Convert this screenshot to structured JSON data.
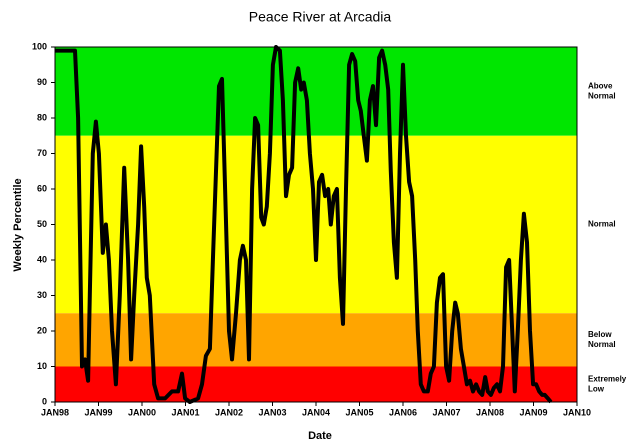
{
  "chart_data": {
    "type": "line",
    "title": "Peace River at Arcadia",
    "xlabel": "Date",
    "ylabel": "Weekly Percentile",
    "xlim": [
      1998,
      2010
    ],
    "xticks": [
      {
        "value": 1998,
        "label": "JAN98"
      },
      {
        "value": 1999,
        "label": "JAN99"
      },
      {
        "value": 2000,
        "label": "JAN00"
      },
      {
        "value": 2001,
        "label": "JAN01"
      },
      {
        "value": 2002,
        "label": "JAN02"
      },
      {
        "value": 2003,
        "label": "JAN03"
      },
      {
        "value": 2004,
        "label": "JAN04"
      },
      {
        "value": 2005,
        "label": "JAN05"
      },
      {
        "value": 2006,
        "label": "JAN06"
      },
      {
        "value": 2007,
        "label": "JAN07"
      },
      {
        "value": 2008,
        "label": "JAN08"
      },
      {
        "value": 2009,
        "label": "JAN09"
      },
      {
        "value": 2010,
        "label": "JAN10"
      }
    ],
    "ylim": [
      0,
      100
    ],
    "yticks": [
      0,
      10,
      20,
      30,
      40,
      50,
      60,
      70,
      80,
      90,
      100
    ],
    "bands": [
      {
        "from": 75,
        "to": 100,
        "color": "#00e600",
        "label": [
          "Above",
          "Normal"
        ]
      },
      {
        "from": 25,
        "to": 75,
        "color": "#ffff00",
        "label": [
          "Normal"
        ]
      },
      {
        "from": 10,
        "to": 25,
        "color": "#ffa500",
        "label": [
          "Below",
          "Normal"
        ]
      },
      {
        "from": 0,
        "to": 10,
        "color": "#ff0000",
        "label": [
          "Extremely",
          "Low"
        ]
      }
    ],
    "color": "#000000",
    "x": [
      1998.0,
      1998.46,
      1998.53,
      1998.62,
      1998.69,
      1998.76,
      1998.8,
      1998.87,
      1998.94,
      1999.01,
      1999.1,
      1999.17,
      1999.24,
      1999.31,
      1999.4,
      1999.49,
      1999.59,
      1999.68,
      1999.75,
      1999.82,
      1999.91,
      1999.98,
      2000.05,
      2000.11,
      2000.18,
      2000.28,
      2000.37,
      2000.53,
      2000.69,
      2000.83,
      2000.92,
      2000.99,
      2001.1,
      2001.29,
      2001.38,
      2001.47,
      2001.56,
      2001.63,
      2001.7,
      2001.77,
      2001.84,
      2001.91,
      2002.0,
      2002.07,
      2002.16,
      2002.25,
      2002.32,
      2002.39,
      2002.46,
      2002.53,
      2002.6,
      2002.67,
      2002.74,
      2002.8,
      2002.87,
      2002.94,
      2003.01,
      2003.08,
      2003.17,
      2003.24,
      2003.31,
      2003.38,
      2003.45,
      2003.52,
      2003.59,
      2003.66,
      2003.72,
      2003.79,
      2003.86,
      2003.93,
      2004.0,
      2004.07,
      2004.14,
      2004.21,
      2004.28,
      2004.34,
      2004.41,
      2004.48,
      2004.55,
      2004.62,
      2004.69,
      2004.76,
      2004.83,
      2004.9,
      2004.97,
      2005.03,
      2005.1,
      2005.17,
      2005.24,
      2005.31,
      2005.38,
      2005.45,
      2005.52,
      2005.59,
      2005.66,
      2005.72,
      2005.79,
      2005.86,
      2005.93,
      2006.0,
      2006.07,
      2006.14,
      2006.21,
      2006.28,
      2006.34,
      2006.41,
      2006.48,
      2006.57,
      2006.64,
      2006.71,
      2006.78,
      2006.85,
      2006.92,
      2006.99,
      2007.06,
      2007.13,
      2007.2,
      2007.26,
      2007.33,
      2007.4,
      2007.47,
      2007.54,
      2007.61,
      2007.68,
      2007.75,
      2007.82,
      2007.89,
      2007.95,
      2008.02,
      2008.09,
      2008.16,
      2008.23,
      2008.3,
      2008.37,
      2008.44,
      2008.51,
      2008.57,
      2008.64,
      2008.71,
      2008.78,
      2008.85,
      2008.92,
      2008.99,
      2009.06,
      2009.13,
      2009.2,
      2009.26,
      2009.33,
      2009.4
    ],
    "values": [
      99,
      99,
      80,
      10,
      12,
      6,
      30,
      70,
      79,
      70,
      42,
      50,
      40,
      20,
      5,
      30,
      66,
      40,
      12,
      30,
      50,
      72,
      55,
      35,
      30,
      5,
      1,
      1,
      3,
      3,
      8,
      1,
      0,
      1,
      5,
      13,
      15,
      40,
      65,
      89,
      91,
      60,
      20,
      12,
      25,
      40,
      44,
      40,
      12,
      60,
      80,
      78,
      52,
      50,
      55,
      70,
      95,
      100,
      99,
      85,
      58,
      64,
      66,
      90,
      94,
      88,
      90,
      85,
      70,
      60,
      40,
      62,
      64,
      58,
      60,
      50,
      58,
      60,
      35,
      22,
      60,
      95,
      98,
      96,
      85,
      82,
      75,
      68,
      85,
      89,
      78,
      97,
      99,
      95,
      88,
      65,
      45,
      35,
      70,
      95,
      75,
      62,
      58,
      40,
      20,
      5,
      3,
      3,
      8,
      10,
      28,
      35,
      36,
      10,
      6,
      20,
      28,
      25,
      15,
      10,
      5,
      6,
      3,
      5,
      3,
      2,
      7,
      3,
      2,
      4,
      5,
      3,
      10,
      38,
      40,
      20,
      3,
      20,
      40,
      53,
      45,
      20,
      5,
      5,
      3,
      2,
      2,
      1,
      0
    ]
  }
}
